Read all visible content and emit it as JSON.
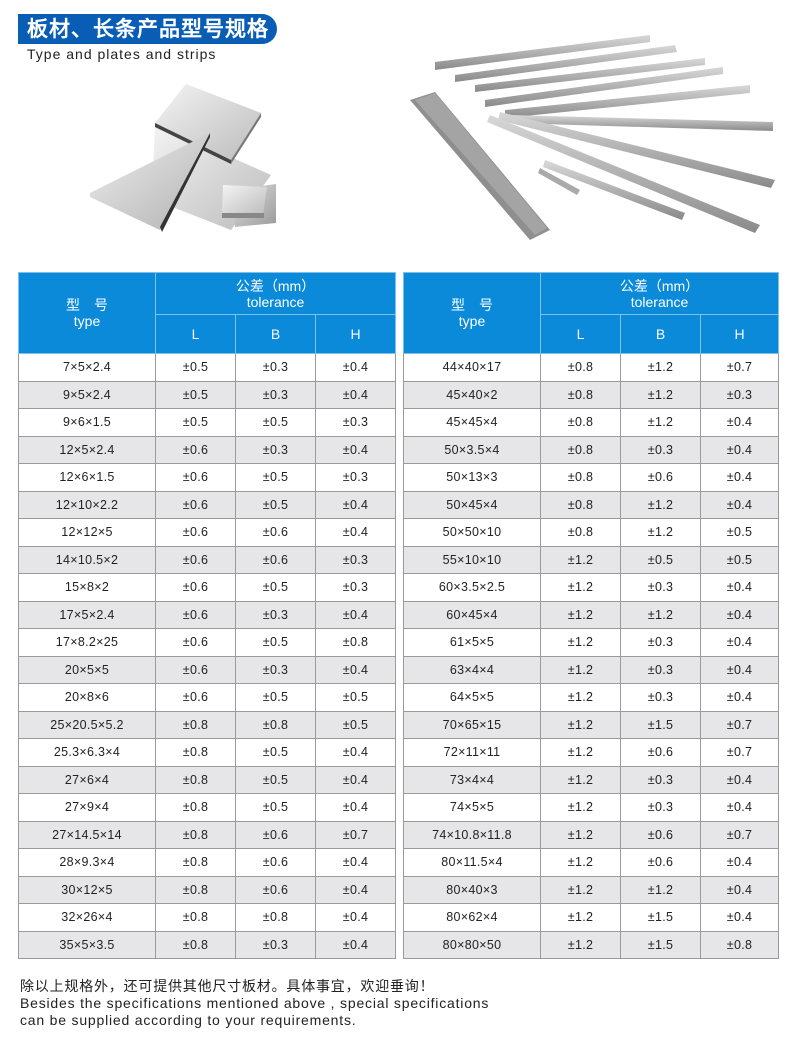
{
  "header": {
    "title": "板材、长条产品型号规格",
    "subtitle": "Type and plates and strips",
    "banner_color": "#0a5db5"
  },
  "table_header": {
    "type_cn": "型　号",
    "type_en": "type",
    "tolerance_cn": "公差（mm）",
    "tolerance_en": "tolerance",
    "col_l": "L",
    "col_b": "B",
    "col_h": "H",
    "header_color": "#0a8ad8"
  },
  "left_table": [
    [
      "7×5×2.4",
      "±0.5",
      "±0.3",
      "±0.4"
    ],
    [
      "9×5×2.4",
      "±0.5",
      "±0.3",
      "±0.4"
    ],
    [
      "9×6×1.5",
      "±0.5",
      "±0.5",
      "±0.3"
    ],
    [
      "12×5×2.4",
      "±0.6",
      "±0.3",
      "±0.4"
    ],
    [
      "12×6×1.5",
      "±0.6",
      "±0.5",
      "±0.3"
    ],
    [
      "12×10×2.2",
      "±0.6",
      "±0.5",
      "±0.4"
    ],
    [
      "12×12×5",
      "±0.6",
      "±0.6",
      "±0.4"
    ],
    [
      "14×10.5×2",
      "±0.6",
      "±0.6",
      "±0.3"
    ],
    [
      "15×8×2",
      "±0.6",
      "±0.5",
      "±0.3"
    ],
    [
      "17×5×2.4",
      "±0.6",
      "±0.3",
      "±0.4"
    ],
    [
      "17×8.2×25",
      "±0.6",
      "±0.5",
      "±0.8"
    ],
    [
      "20×5×5",
      "±0.6",
      "±0.3",
      "±0.4"
    ],
    [
      "20×8×6",
      "±0.6",
      "±0.5",
      "±0.5"
    ],
    [
      "25×20.5×5.2",
      "±0.8",
      "±0.8",
      "±0.5"
    ],
    [
      "25.3×6.3×4",
      "±0.8",
      "±0.5",
      "±0.4"
    ],
    [
      "27×6×4",
      "±0.8",
      "±0.5",
      "±0.4"
    ],
    [
      "27×9×4",
      "±0.8",
      "±0.5",
      "±0.4"
    ],
    [
      "27×14.5×14",
      "±0.8",
      "±0.6",
      "±0.7"
    ],
    [
      "28×9.3×4",
      "±0.8",
      "±0.6",
      "±0.4"
    ],
    [
      "30×12×5",
      "±0.8",
      "±0.6",
      "±0.4"
    ],
    [
      "32×26×4",
      "±0.8",
      "±0.8",
      "±0.4"
    ],
    [
      "35×5×3.5",
      "±0.8",
      "±0.3",
      "±0.4"
    ]
  ],
  "right_table": [
    [
      "44×40×17",
      "±0.8",
      "±1.2",
      "±0.7"
    ],
    [
      "45×40×2",
      "±0.8",
      "±1.2",
      "±0.3"
    ],
    [
      "45×45×4",
      "±0.8",
      "±1.2",
      "±0.4"
    ],
    [
      "50×3.5×4",
      "±0.8",
      "±0.3",
      "±0.4"
    ],
    [
      "50×13×3",
      "±0.8",
      "±0.6",
      "±0.4"
    ],
    [
      "50×45×4",
      "±0.8",
      "±1.2",
      "±0.4"
    ],
    [
      "50×50×10",
      "±0.8",
      "±1.2",
      "±0.5"
    ],
    [
      "55×10×10",
      "±1.2",
      "±0.5",
      "±0.5"
    ],
    [
      "60×3.5×2.5",
      "±1.2",
      "±0.3",
      "±0.4"
    ],
    [
      "60×45×4",
      "±1.2",
      "±1.2",
      "±0.4"
    ],
    [
      "61×5×5",
      "±1.2",
      "±0.3",
      "±0.4"
    ],
    [
      "63×4×4",
      "±1.2",
      "±0.3",
      "±0.4"
    ],
    [
      "64×5×5",
      "±1.2",
      "±0.3",
      "±0.4"
    ],
    [
      "70×65×15",
      "±1.2",
      "±1.5",
      "±0.7"
    ],
    [
      "72×11×11",
      "±1.2",
      "±0.6",
      "±0.7"
    ],
    [
      "73×4×4",
      "±1.2",
      "±0.3",
      "±0.4"
    ],
    [
      "74×5×5",
      "±1.2",
      "±0.3",
      "±0.4"
    ],
    [
      "74×10.8×11.8",
      "±1.2",
      "±0.6",
      "±0.7"
    ],
    [
      "80×11.5×4",
      "±1.2",
      "±0.6",
      "±0.4"
    ],
    [
      "80×40×3",
      "±1.2",
      "±1.2",
      "±0.4"
    ],
    [
      "80×62×4",
      "±1.2",
      "±1.5",
      "±0.4"
    ],
    [
      "80×80×50",
      "±1.2",
      "±1.5",
      "±0.8"
    ]
  ],
  "footer": {
    "note_cn": "除以上规格外，还可提供其他尺寸板材。具体事宜，欢迎垂询！",
    "note_en_1": "Besides the specifications mentioned above , special specifications",
    "note_en_2": "can be supplied according to your requirements."
  }
}
